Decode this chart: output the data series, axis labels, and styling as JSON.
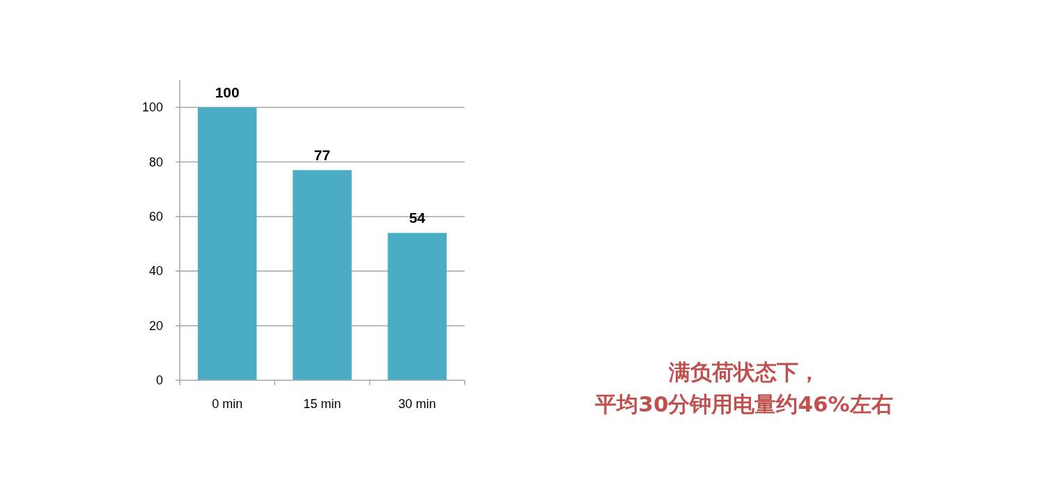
{
  "chart_data": {
    "type": "bar",
    "categories": [
      "0 min",
      "15 min",
      "30 min"
    ],
    "values": [
      100,
      77,
      54
    ],
    "color": "#4bacc6",
    "ylim": [
      0,
      110
    ],
    "yticks": [
      0,
      20,
      40,
      60,
      80,
      100
    ],
    "grid": "y",
    "data_labels": true,
    "annotations": [
      "满负荷状态下，",
      "平均30分钟用电量约46%左右"
    ]
  }
}
